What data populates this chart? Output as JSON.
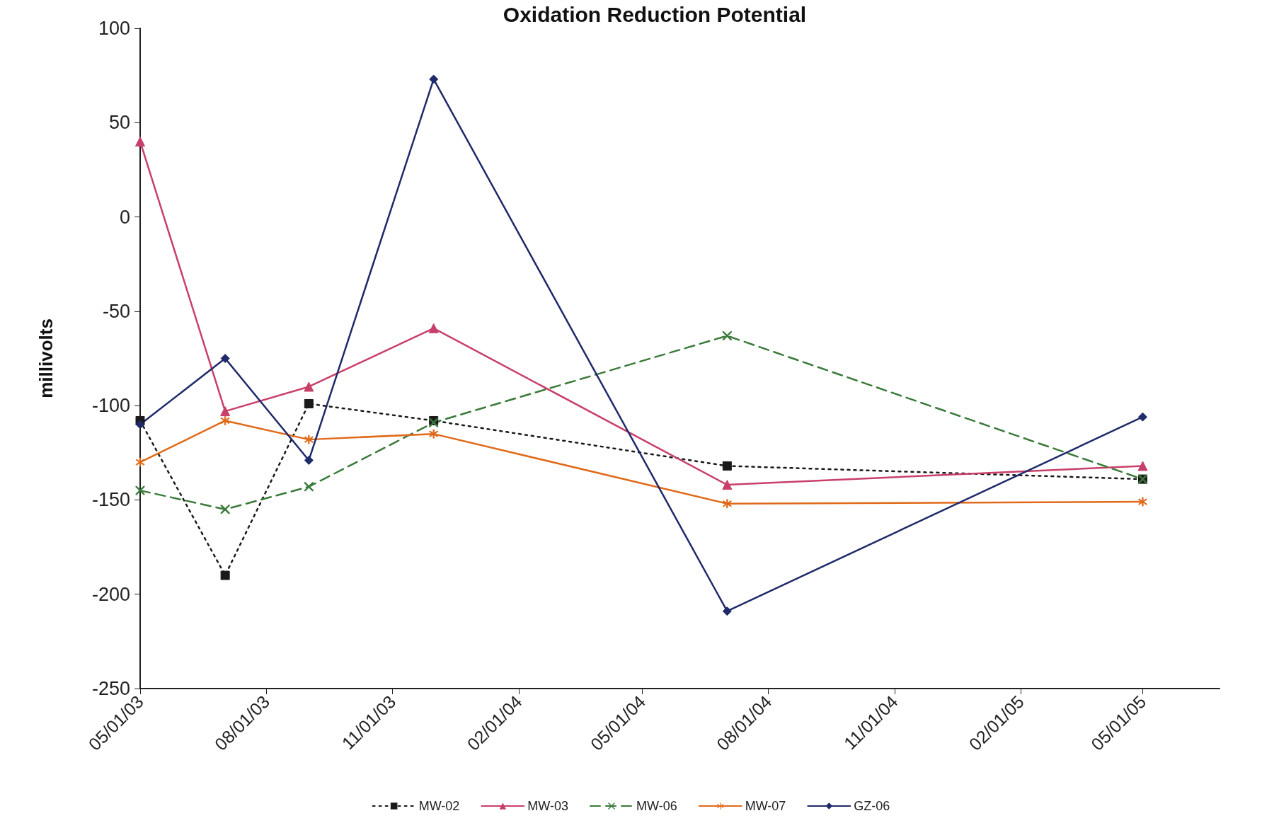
{
  "chart_data": {
    "type": "line",
    "title": "Oxidation Reduction Potential",
    "ylabel": "millivolts",
    "x": [
      "2003-05-01",
      "2003-07-02",
      "2003-09-01",
      "2003-12-01",
      "2004-07-02",
      "2005-05-01"
    ],
    "series": [
      {
        "name": "MW-02",
        "color": "#1a1a1a",
        "marker": "square",
        "line_style": "dotted",
        "values": [
          -108,
          -190,
          -99,
          -108,
          -132,
          -139
        ]
      },
      {
        "name": "MW-03",
        "color": "#c8406a",
        "marker": "triangle",
        "line_style": "solid",
        "values": [
          40,
          -103,
          -90,
          -59,
          -142,
          -132
        ]
      },
      {
        "name": "MW-06",
        "color": "#3a7a3a",
        "marker": "cross",
        "line_style": "dashed",
        "values": [
          -145,
          -155,
          -143,
          -109,
          -63,
          -139
        ]
      },
      {
        "name": "MW-07",
        "color": "#e06a1a",
        "marker": "star",
        "line_style": "solid",
        "values": [
          -130,
          -108,
          -118,
          -115,
          -152,
          -151
        ]
      },
      {
        "name": "GZ-06",
        "color": "#1f2a6a",
        "marker": "diamond",
        "line_style": "solid",
        "values": [
          -110,
          -75,
          -129,
          73,
          -209,
          -106
        ]
      }
    ],
    "xlim": [
      "2003-05-01",
      "2005-06-26"
    ],
    "xticks": [
      {
        "value": "2003-05-01",
        "label": "05/01/03"
      },
      {
        "value": "2003-08-01",
        "label": "08/01/03"
      },
      {
        "value": "2003-11-01",
        "label": "11/01/03"
      },
      {
        "value": "2004-02-01",
        "label": "02/01/04"
      },
      {
        "value": "2004-05-01",
        "label": "05/01/04"
      },
      {
        "value": "2004-08-01",
        "label": "08/01/04"
      },
      {
        "value": "2004-11-01",
        "label": "11/01/04"
      },
      {
        "value": "2005-02-01",
        "label": "02/01/05"
      },
      {
        "value": "2005-05-01",
        "label": "05/01/05"
      }
    ],
    "ylim": [
      -250,
      100
    ],
    "yticks": [
      -250,
      -200,
      -150,
      -100,
      -50,
      0,
      50,
      100
    ],
    "grid": false,
    "legend": "bottom"
  }
}
